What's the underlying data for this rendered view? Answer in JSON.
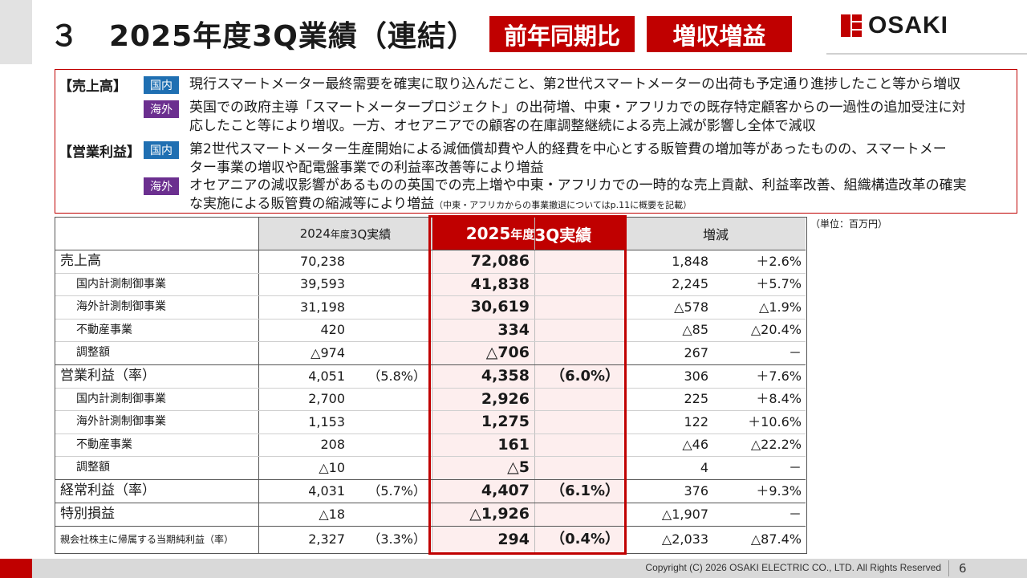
{
  "header": {
    "title": "３　2025年度3Q業績（連結）",
    "badge1": "前年同期比",
    "badge2": "増収増益",
    "logo": "OSAKI"
  },
  "colors": {
    "accent": "#c00000",
    "domestic_tag": "#1f6fb2",
    "overseas_tag": "#6b2f8f",
    "highlight_band": "#fdeeee"
  },
  "summary": {
    "sales_head": "【売上高】",
    "op_head": "【営業利益】",
    "tag_domestic": "国内",
    "tag_overseas": "海外",
    "sales_domestic": "現行スマートメーター最終需要を確実に取り込んだこと、第2世代スマートメーターの出荷も予定通り進捗したこと等から増収",
    "sales_overseas_1": "英国での政府主導「スマートメータープロジェクト」の出荷増、中東・アフリカでの既存特定顧客からの一過性の追加受注に対",
    "sales_overseas_2": "応したこと等により増収。一方、オセアニアでの顧客の在庫調整継続による売上減が影響し全体で減収",
    "op_domestic_1": "第2世代スマートメーター生産開始による減価償却費や人的経費を中心とする販管費の増加等があったものの、スマートメー",
    "op_domestic_2": "ター事業の増収や配電盤事業での利益率改善等により増益",
    "op_overseas_1": "オセアニアの減収影響があるものの英国での売上増や中東・アフリカでの一時的な売上貢献、利益率改善、組織構造改革の確実",
    "op_overseas_2": "な実施による販管費の縮減等により増益",
    "op_overseas_note": "（中東・アフリカからの事業撤退についてはp.11に概要を記載）"
  },
  "table": {
    "unit": "（単位：百万円）",
    "col_2024_a": "2024",
    "col_2024_b": "年度",
    "col_2024_c": "3Q実績",
    "col_2025_a": "2025",
    "col_2025_b": "年度",
    "col_2025_c": "3Q実績",
    "col_diff": "増減",
    "rows": [
      {
        "label": "売上高",
        "v24": "70,238",
        "r24": "",
        "v25": "72,086",
        "r25": "",
        "dv": "1,848",
        "dp": "＋2.6%"
      },
      {
        "label": "国内計測制御事業",
        "v24": "39,593",
        "r24": "",
        "v25": "41,838",
        "r25": "",
        "dv": "2,245",
        "dp": "＋5.7%"
      },
      {
        "label": "海外計測制御事業",
        "v24": "31,198",
        "r24": "",
        "v25": "30,619",
        "r25": "",
        "dv": "△578",
        "dp": "△1.9%"
      },
      {
        "label": "不動産事業",
        "v24": "420",
        "r24": "",
        "v25": "334",
        "r25": "",
        "dv": "△85",
        "dp": "△20.4%"
      },
      {
        "label": "調整額",
        "v24": "△974",
        "r24": "",
        "v25": "△706",
        "r25": "",
        "dv": "267",
        "dp": "－"
      },
      {
        "label": "営業利益（率）",
        "v24": "4,051",
        "r24": "（5.8%）",
        "v25": "4,358",
        "r25": "（6.0%）",
        "dv": "306",
        "dp": "＋7.6%"
      },
      {
        "label": "国内計測制御事業",
        "v24": "2,700",
        "r24": "",
        "v25": "2,926",
        "r25": "",
        "dv": "225",
        "dp": "＋8.4%"
      },
      {
        "label": "海外計測制御事業",
        "v24": "1,153",
        "r24": "",
        "v25": "1,275",
        "r25": "",
        "dv": "122",
        "dp": "＋10.6%"
      },
      {
        "label": "不動産事業",
        "v24": "208",
        "r24": "",
        "v25": "161",
        "r25": "",
        "dv": "△46",
        "dp": "△22.2%"
      },
      {
        "label": "調整額",
        "v24": "△10",
        "r24": "",
        "v25": "△5",
        "r25": "",
        "dv": "4",
        "dp": "－"
      },
      {
        "label": "経常利益（率）",
        "v24": "4,031",
        "r24": "（5.7%）",
        "v25": "4,407",
        "r25": "（6.1%）",
        "dv": "376",
        "dp": "＋9.3%"
      },
      {
        "label": "特別損益",
        "v24": "△18",
        "r24": "",
        "v25": "△1,926",
        "r25": "",
        "dv": "△1,907",
        "dp": "－"
      },
      {
        "label": "親会社株主に帰属する当期純利益（率）",
        "v24": "2,327",
        "r24": "（3.3%）",
        "v25": "294",
        "r25": "（0.4%）",
        "dv": "△2,033",
        "dp": "△87.4%"
      }
    ]
  },
  "footer": {
    "copyright": "Copyright (C) 2026 OSAKI ELECTRIC CO., LTD. All Rights Reserved",
    "page": "6"
  }
}
